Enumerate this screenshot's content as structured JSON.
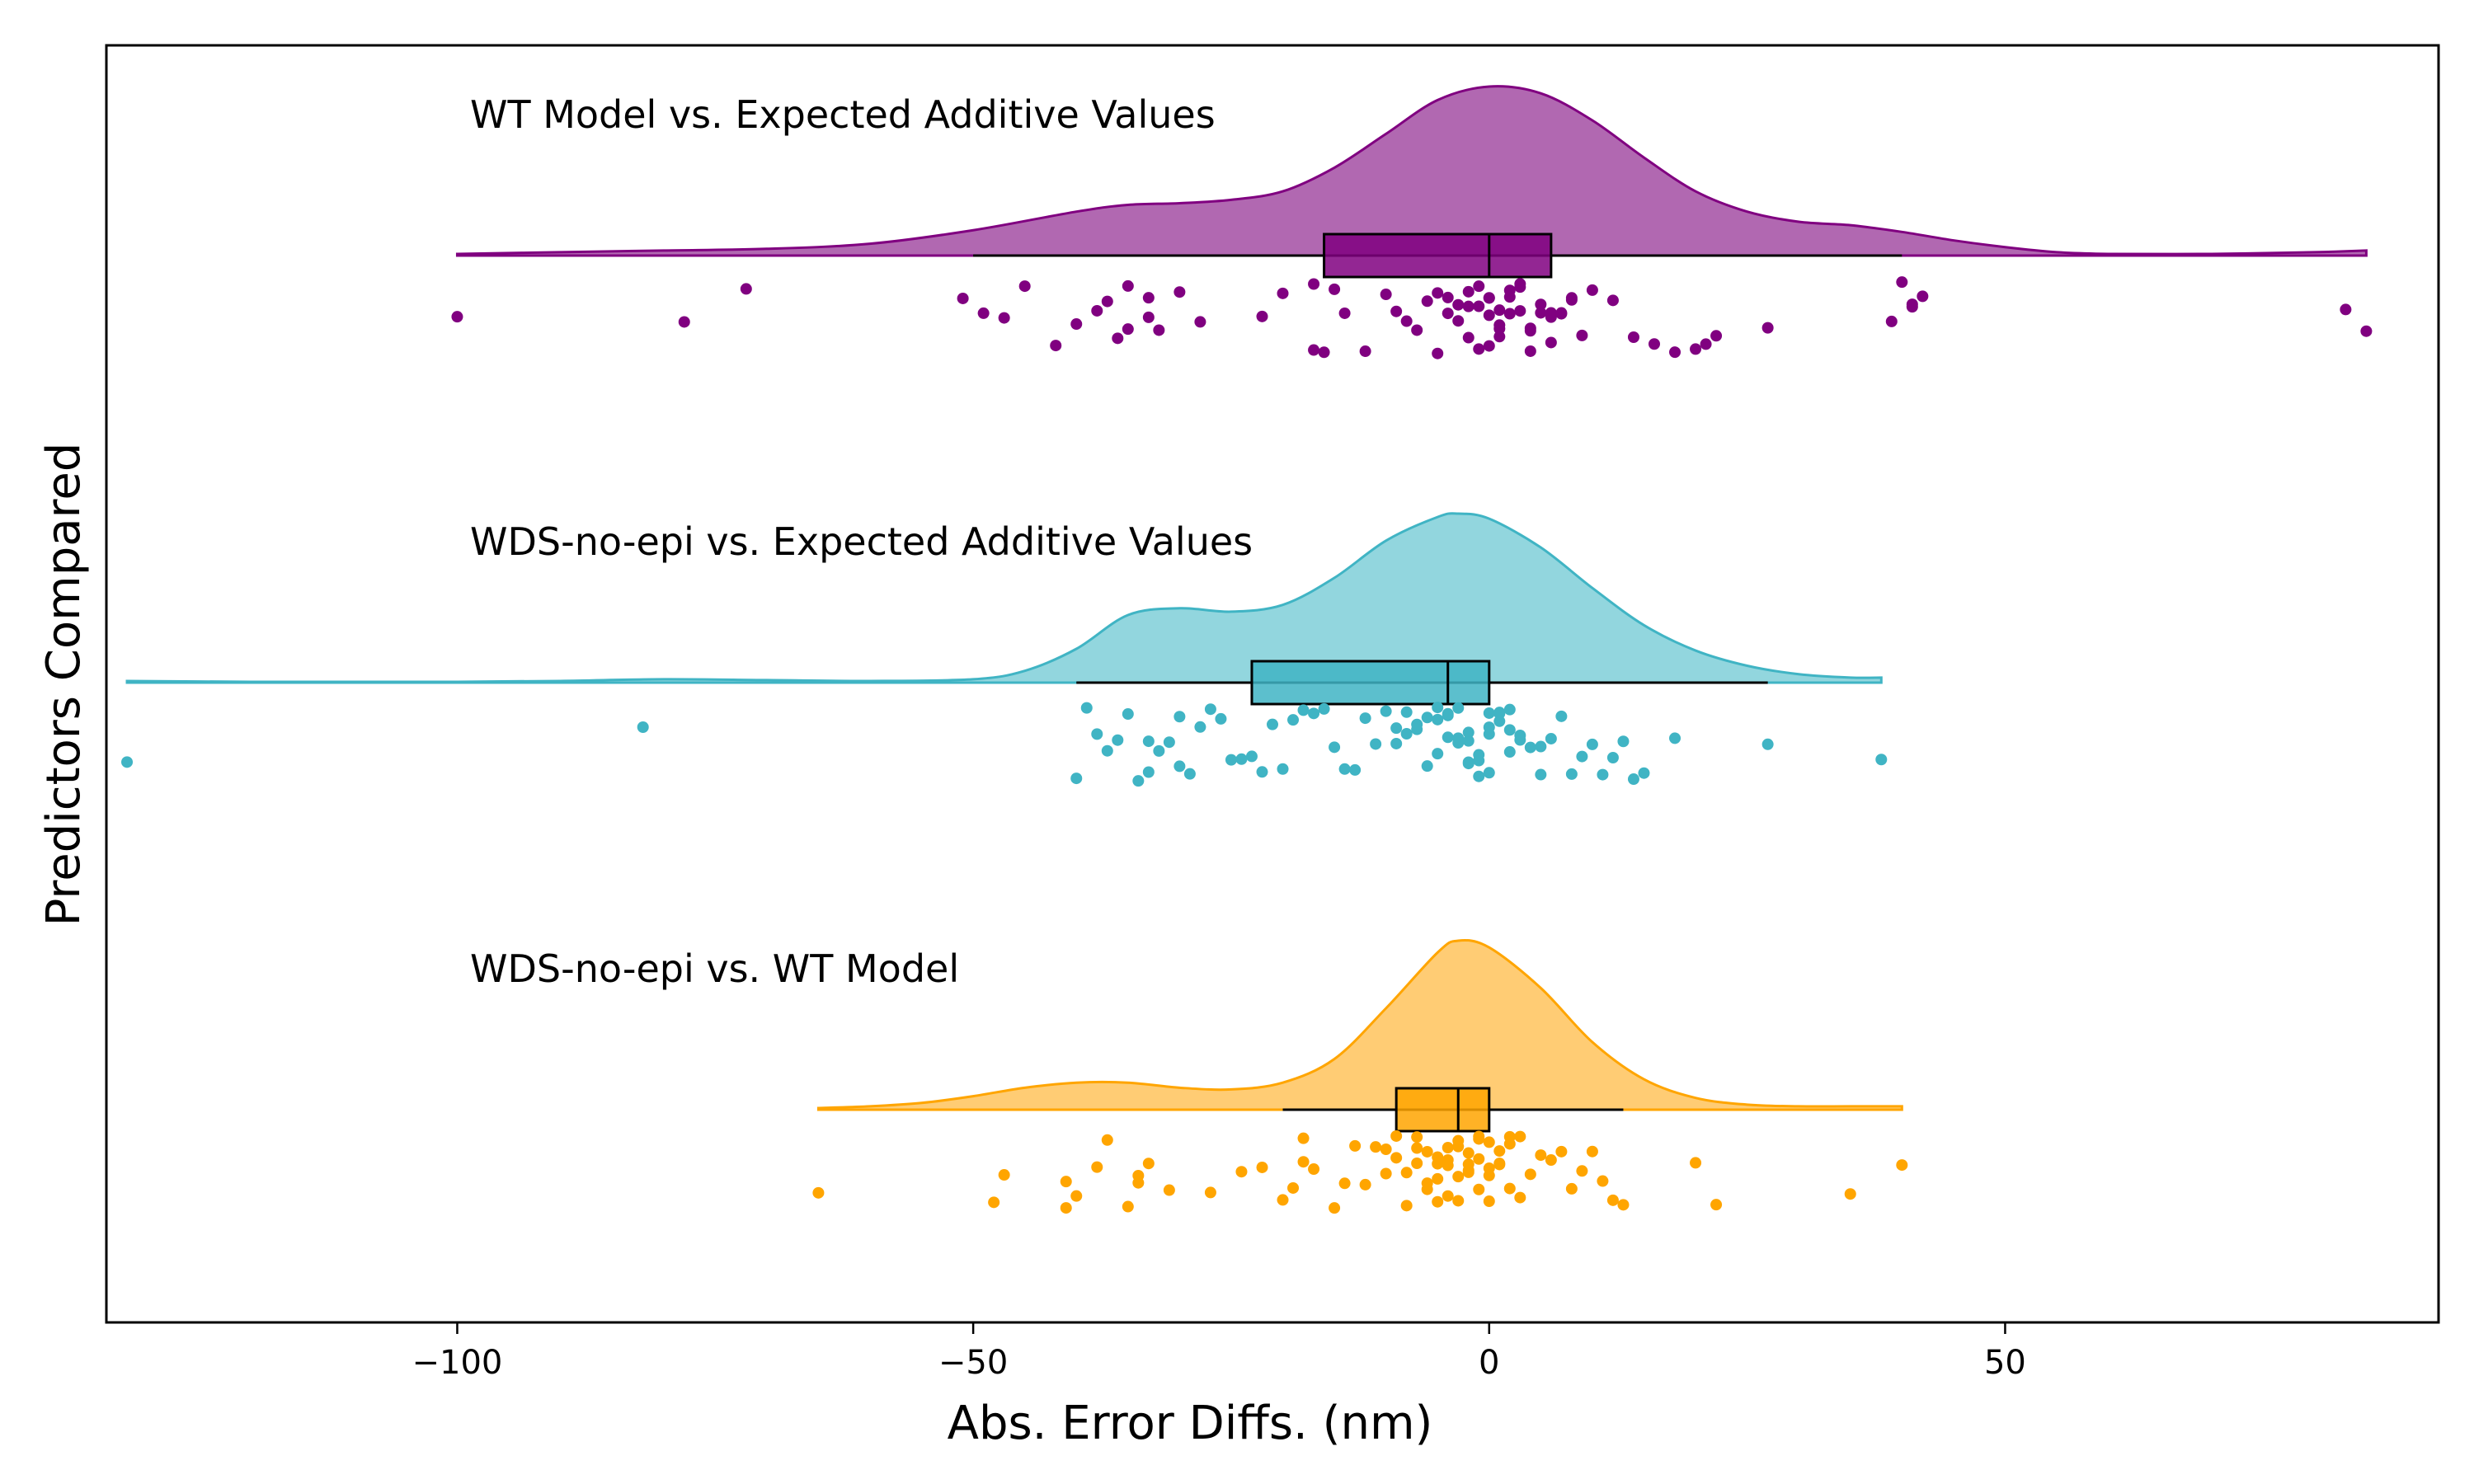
{
  "chart_data": {
    "type": "raincloud",
    "xlabel": "Abs. Error Diffs. (nm)",
    "ylabel": "Predictors Compared",
    "xlim": [
      -134,
      92
    ],
    "xticks": [
      -100,
      -50,
      0,
      50
    ],
    "xtick_labels": [
      "−100",
      "−50",
      "0",
      "50"
    ],
    "grid": false,
    "series": [
      {
        "name": "WT Model vs. Expected Additive Values",
        "color": "#800080",
        "fill_color": "#a34da3",
        "box": {
          "whisker_low": -50,
          "q1": -16,
          "median": 0,
          "q3": 6,
          "whisker_high": 40
        },
        "density": {
          "x": [
            -100,
            -90,
            -80,
            -70,
            -60,
            -50,
            -40,
            -35,
            -30,
            -25,
            -20,
            -15,
            -10,
            -5,
            0,
            5,
            10,
            15,
            20,
            25,
            30,
            35,
            40,
            45,
            50,
            55,
            60,
            70,
            80,
            85
          ],
          "y": [
            0.01,
            0.02,
            0.03,
            0.04,
            0.07,
            0.15,
            0.26,
            0.3,
            0.31,
            0.33,
            0.38,
            0.52,
            0.72,
            0.92,
            1.0,
            0.96,
            0.8,
            0.58,
            0.38,
            0.26,
            0.2,
            0.18,
            0.14,
            0.09,
            0.05,
            0.02,
            0.01,
            0.01,
            0.02,
            0.03
          ]
        },
        "points": [
          -100,
          -78,
          -72,
          -51,
          -49,
          -47,
          -45,
          -42,
          -40,
          -38,
          -37,
          -36,
          -35,
          -35,
          -33,
          -33,
          -32,
          -30,
          -28,
          -22,
          -20,
          -17,
          -17,
          -16,
          -15,
          -14,
          -12,
          -10,
          -9,
          -8,
          -7,
          -6,
          -5,
          -5,
          -4,
          -4,
          -3,
          -3,
          -2,
          -2,
          -2,
          -1,
          -1,
          -1,
          0,
          0,
          0,
          0,
          1,
          1,
          1,
          1,
          2,
          2,
          2,
          3,
          3,
          3,
          4,
          4,
          4,
          5,
          5,
          6,
          6,
          6,
          7,
          7,
          8,
          8,
          9,
          10,
          12,
          14,
          16,
          18,
          20,
          21,
          22,
          27,
          39,
          40,
          41,
          41,
          42,
          83,
          85
        ]
      },
      {
        "name": "WDS-no-epi vs. Expected Additive Values",
        "color": "#40b4c4",
        "fill_color": "#7fcfd8",
        "box": {
          "whisker_low": -40,
          "q1": -23,
          "median": -4,
          "q3": 0,
          "whisker_high": 27
        },
        "density": {
          "x": [
            -132,
            -120,
            -110,
            -100,
            -90,
            -80,
            -70,
            -60,
            -50,
            -45,
            -40,
            -35,
            -30,
            -25,
            -20,
            -15,
            -10,
            -5,
            -3,
            0,
            5,
            10,
            15,
            20,
            25,
            30,
            35,
            38
          ],
          "y": [
            0.01,
            0.005,
            0.005,
            0.005,
            0.01,
            0.02,
            0.015,
            0.01,
            0.02,
            0.07,
            0.2,
            0.4,
            0.44,
            0.42,
            0.46,
            0.62,
            0.84,
            0.98,
            1.0,
            0.97,
            0.8,
            0.56,
            0.34,
            0.19,
            0.1,
            0.05,
            0.03,
            0.03
          ]
        },
        "points": [
          -132,
          -82,
          -40,
          -39,
          -38,
          -37,
          -36,
          -35,
          -34,
          -33,
          -33,
          -32,
          -31,
          -30,
          -30,
          -29,
          -28,
          -27,
          -26,
          -25,
          -24,
          -23,
          -22,
          -21,
          -20,
          -19,
          -18,
          -17,
          -16,
          -15,
          -14,
          -13,
          -12,
          -11,
          -10,
          -9,
          -9,
          -8,
          -8,
          -7,
          -7,
          -6,
          -6,
          -5,
          -5,
          -5,
          -4,
          -4,
          -4,
          -3,
          -3,
          -3,
          -2,
          -2,
          -2,
          -2,
          -1,
          -1,
          -1,
          0,
          0,
          0,
          0,
          1,
          1,
          1,
          2,
          2,
          2,
          3,
          3,
          4,
          5,
          5,
          6,
          7,
          8,
          9,
          10,
          11,
          12,
          13,
          14,
          15,
          18,
          27,
          38
        ]
      },
      {
        "name": "WDS-no-epi vs. WT Model",
        "color": "#ffa500",
        "fill_color": "#ffc35c",
        "box": {
          "whisker_low": -20,
          "q1": -9,
          "median": -3,
          "q3": 0,
          "whisker_high": 13
        },
        "density": {
          "x": [
            -65,
            -60,
            -55,
            -50,
            -45,
            -40,
            -35,
            -30,
            -25,
            -20,
            -15,
            -10,
            -5,
            -3,
            0,
            5,
            10,
            15,
            20,
            25,
            30,
            35,
            40
          ],
          "y": [
            0.01,
            0.02,
            0.04,
            0.08,
            0.13,
            0.16,
            0.16,
            0.13,
            0.12,
            0.16,
            0.3,
            0.6,
            0.93,
            1.0,
            0.96,
            0.72,
            0.4,
            0.18,
            0.07,
            0.03,
            0.02,
            0.02,
            0.02
          ]
        },
        "points": [
          -65,
          -48,
          -47,
          -41,
          -41,
          -40,
          -38,
          -37,
          -35,
          -34,
          -34,
          -33,
          -31,
          -27,
          -24,
          -22,
          -20,
          -19,
          -18,
          -18,
          -17,
          -15,
          -14,
          -13,
          -12,
          -11,
          -10,
          -10,
          -9,
          -9,
          -8,
          -8,
          -7,
          -7,
          -7,
          -6,
          -6,
          -6,
          -5,
          -5,
          -5,
          -5,
          -4,
          -4,
          -4,
          -4,
          -3,
          -3,
          -3,
          -3,
          -2,
          -2,
          -2,
          -2,
          -1,
          -1,
          -1,
          -1,
          0,
          0,
          0,
          0,
          1,
          1,
          1,
          2,
          2,
          2,
          3,
          3,
          4,
          5,
          6,
          7,
          8,
          9,
          10,
          11,
          12,
          13,
          20,
          22,
          35,
          40
        ]
      }
    ]
  }
}
